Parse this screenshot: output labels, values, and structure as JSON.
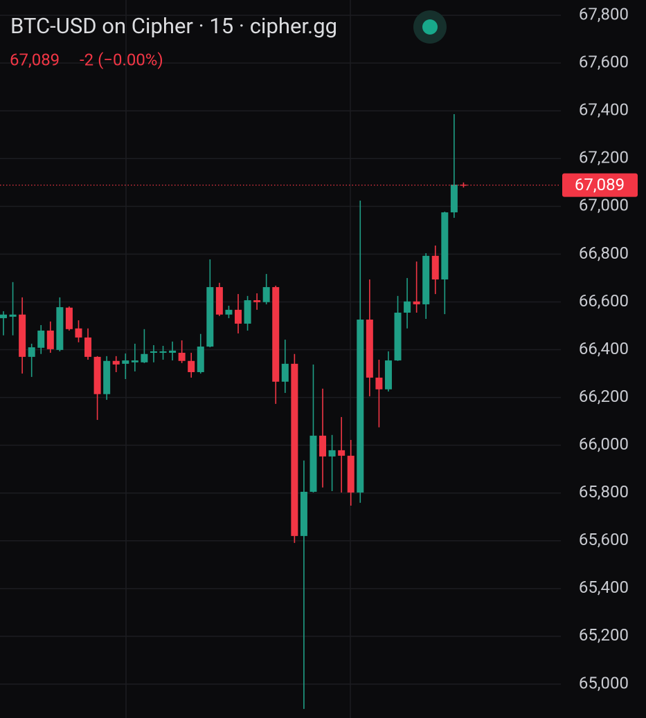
{
  "chart_data": {
    "type": "candlestick",
    "title": "BTC-USD on Cipher · 15 · cipher.gg",
    "price_label": "67,089",
    "change": "-2 (−0.00%)",
    "last_price": 67089,
    "last_price_label": "67,089",
    "up_color": "#1f9f86",
    "down_color": "#f23645",
    "grid": true,
    "ylim": [
      64858,
      67864
    ],
    "yticks": [
      {
        "value": 65000,
        "label": "65,000"
      },
      {
        "value": 65200,
        "label": "65,200"
      },
      {
        "value": 65400,
        "label": "65,400"
      },
      {
        "value": 65600,
        "label": "65,600"
      },
      {
        "value": 65800,
        "label": "65,800"
      },
      {
        "value": 66000,
        "label": "66,000"
      },
      {
        "value": 66200,
        "label": "66,200"
      },
      {
        "value": 66400,
        "label": "66,400"
      },
      {
        "value": 66600,
        "label": "66,600"
      },
      {
        "value": 66800,
        "label": "66,800"
      },
      {
        "value": 67000,
        "label": "67,000"
      },
      {
        "value": 67200,
        "label": "67,200"
      },
      {
        "value": 67400,
        "label": "67,400"
      },
      {
        "value": 67600,
        "label": "67,600"
      },
      {
        "value": 67800,
        "label": "67,800"
      }
    ],
    "open": [
      66532,
      66538,
      66547,
      66370,
      66408,
      66480,
      66399,
      66576,
      66489,
      66451,
      66370,
      66214,
      66353,
      66341,
      66347,
      66347,
      66387,
      66387,
      66387,
      66387,
      66353,
      66306,
      66413,
      66662,
      66547,
      66567,
      66509,
      66607,
      66599,
      66662,
      66266,
      66341,
      65620,
      65805,
      66040,
      65953,
      65979,
      65956,
      65802,
      66526,
      66283,
      66234,
      66355,
      66555,
      66602,
      66590,
      66793,
      66694,
      66975,
      67091
    ],
    "high": [
      66561,
      66683,
      66619,
      66425,
      66503,
      66518,
      66619,
      66581,
      66523,
      66489,
      66373,
      66373,
      66373,
      66384,
      66425,
      66486,
      66419,
      66416,
      66434,
      66439,
      66387,
      66466,
      66778,
      66680,
      66584,
      66633,
      66625,
      66636,
      66717,
      66668,
      66442,
      66382,
      65936,
      66338,
      66237,
      66043,
      66118,
      66022,
      67024,
      66694,
      66358,
      66393,
      66625,
      66700,
      66769,
      66804,
      66836,
      66978,
      67386,
      67100
    ],
    "low": [
      66460,
      66460,
      66300,
      66286,
      66382,
      66387,
      66393,
      66480,
      66431,
      66358,
      66106,
      66190,
      66306,
      66277,
      66309,
      66344,
      66347,
      66358,
      66355,
      66344,
      66283,
      66300,
      66410,
      66541,
      66532,
      66468,
      66480,
      66567,
      66590,
      66173,
      66219,
      65591,
      64896,
      65802,
      65823,
      65808,
      65802,
      65747,
      65759,
      66205,
      66075,
      66225,
      66353,
      66489,
      66555,
      66529,
      66633,
      66549,
      66952,
      67079
    ],
    "close": [
      66547,
      66547,
      66370,
      66410,
      66480,
      66402,
      66578,
      66486,
      66451,
      66370,
      66214,
      66353,
      66338,
      66355,
      66355,
      66382,
      66393,
      66393,
      66396,
      66353,
      66306,
      66413,
      66662,
      66547,
      66567,
      66509,
      66607,
      66599,
      66662,
      66266,
      66341,
      65620,
      65805,
      66040,
      65953,
      65979,
      65956,
      65802,
      66526,
      66283,
      66234,
      66355,
      66555,
      66602,
      66590,
      66793,
      66694,
      66975,
      67091,
      67089
    ]
  }
}
